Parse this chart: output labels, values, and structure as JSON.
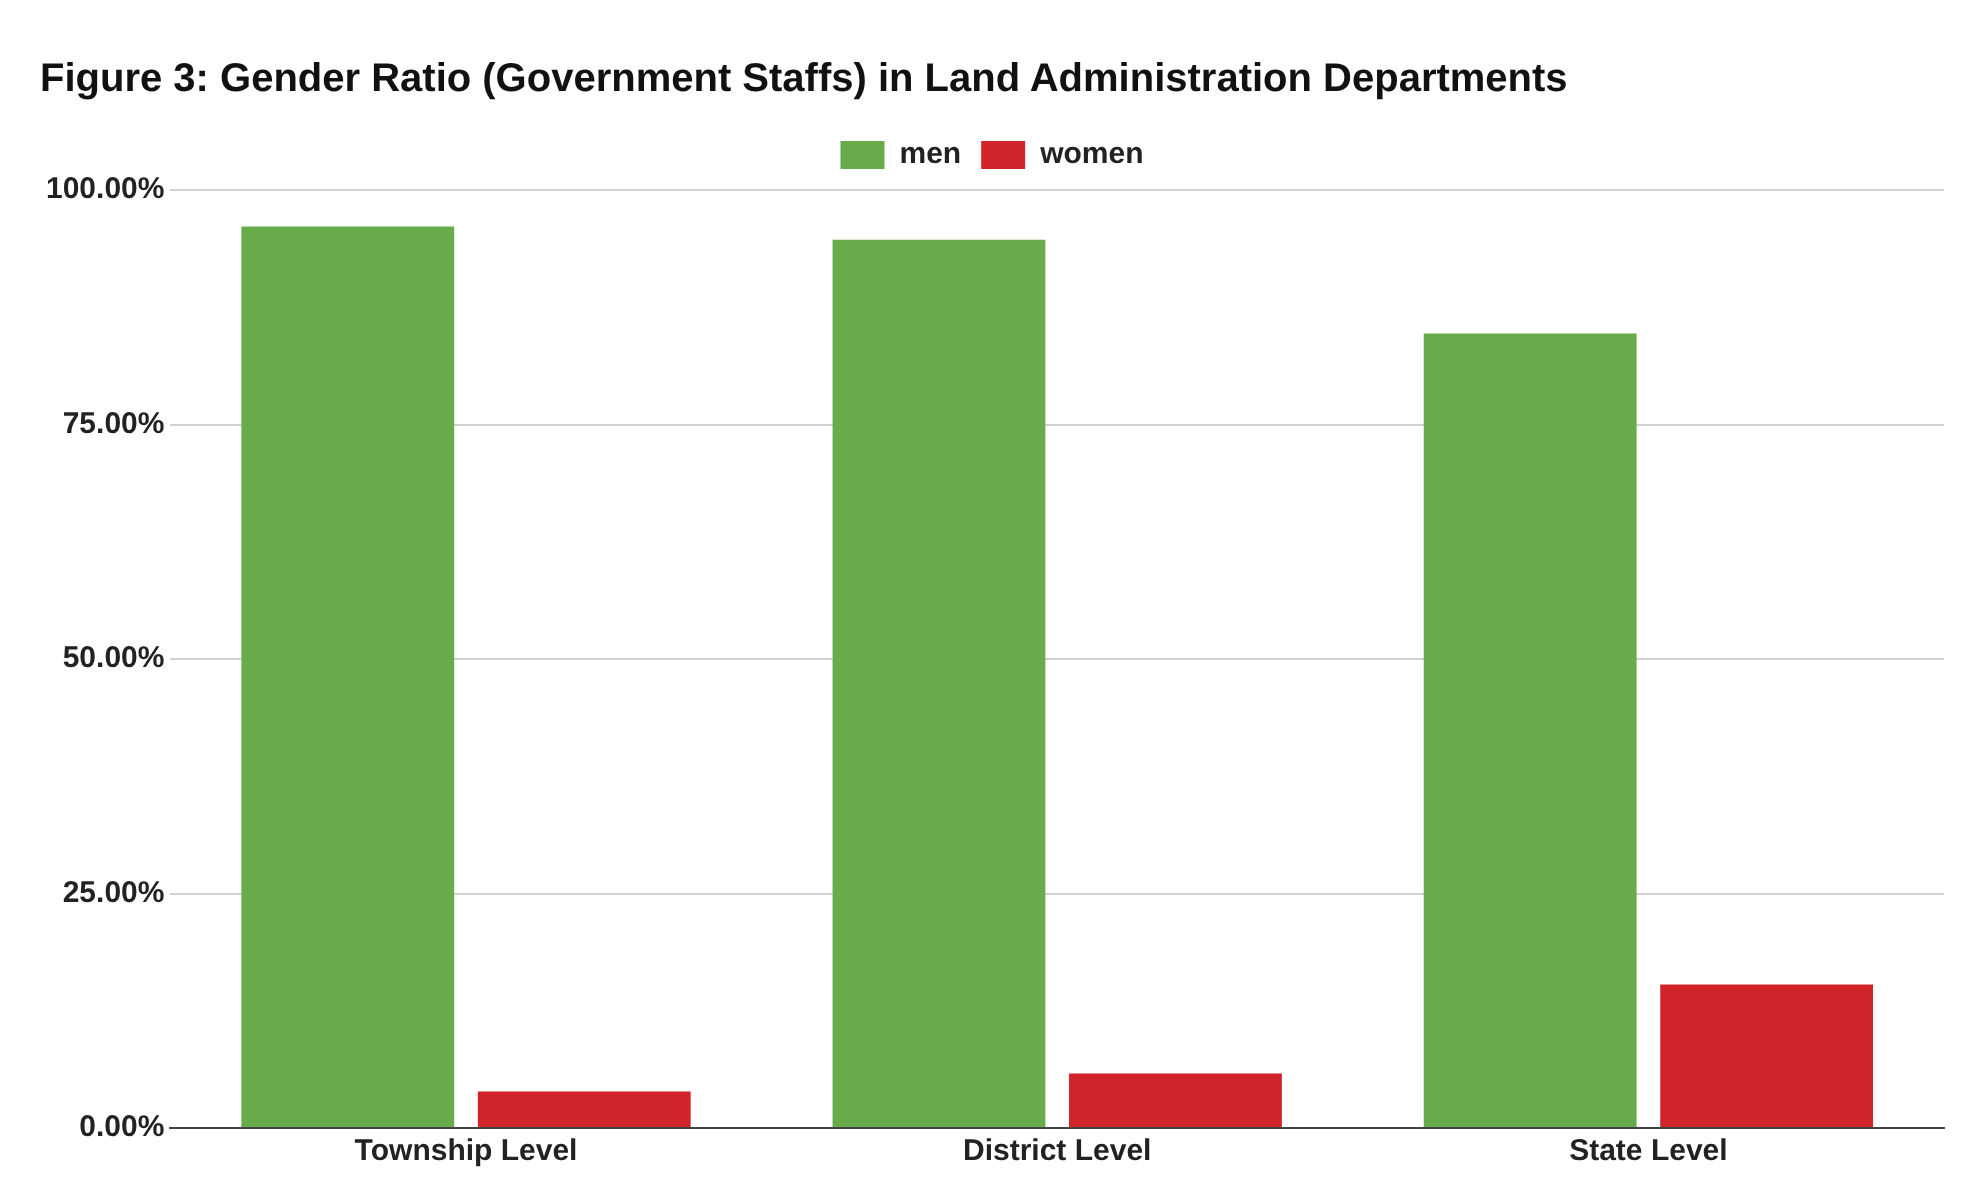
{
  "chart_data": {
    "type": "bar",
    "title": "Figure 3: Gender Ratio (Government Staffs) in Land Administration Departments",
    "categories": [
      "Township Level",
      "District Level",
      "State Level"
    ],
    "series": [
      {
        "name": "men",
        "color": "#67ab4a",
        "values": [
          96.1,
          94.7,
          84.7
        ]
      },
      {
        "name": "women",
        "color": "#d0232a",
        "values": [
          3.9,
          5.8,
          15.3
        ]
      }
    ],
    "ylim": [
      0,
      100
    ],
    "yticks": [
      {
        "value": 0,
        "label": "0.00%"
      },
      {
        "value": 25,
        "label": "25.00%"
      },
      {
        "value": 50,
        "label": "50.00%"
      },
      {
        "value": 75,
        "label": "75.00%"
      },
      {
        "value": 100,
        "label": "100.00%"
      }
    ],
    "grid": "y",
    "legend": "top"
  }
}
